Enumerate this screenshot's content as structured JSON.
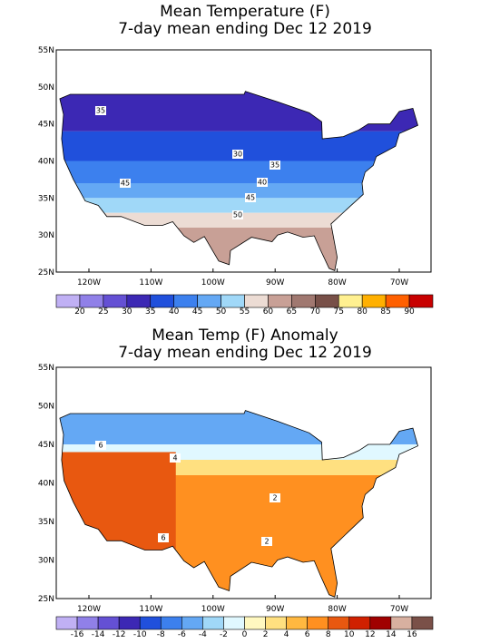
{
  "panels": [
    {
      "title_lines": [
        "Mean Temperature (F)",
        "7-day mean ending Dec 12 2019"
      ],
      "lat_labels": [
        "55N",
        "50N",
        "45N",
        "40N",
        "35N",
        "30N",
        "25N"
      ],
      "lon_labels": [
        "120W",
        "110W",
        "100W",
        "90W",
        "80W",
        "70W"
      ],
      "contour_labels": [
        "35",
        "30",
        "35",
        "40",
        "45",
        "45",
        "50"
      ],
      "colorbar": {
        "labels": [
          "20",
          "25",
          "30",
          "35",
          "40",
          "45",
          "50",
          "55",
          "60",
          "65",
          "70",
          "75",
          "80",
          "85",
          "90"
        ],
        "colors": [
          "#c0b0f4",
          "#9080e8",
          "#6450d4",
          "#3c28b4",
          "#2050dc",
          "#3c80ee",
          "#64a8f4",
          "#a0d8f8",
          "#ecdcd4",
          "#c8a096",
          "#a07870",
          "#785048",
          "#fff090",
          "#ffb000",
          "#ff6000",
          "#c80000"
        ]
      }
    },
    {
      "title_lines": [
        "Mean Temp (F) Anomaly",
        "7-day mean ending Dec 12 2019"
      ],
      "lat_labels": [
        "55N",
        "50N",
        "45N",
        "40N",
        "35N",
        "30N",
        "25N"
      ],
      "lon_labels": [
        "120W",
        "110W",
        "100W",
        "90W",
        "80W",
        "70W"
      ],
      "contour_labels": [
        "6",
        "4",
        "2",
        "2",
        "6"
      ],
      "colorbar": {
        "labels": [
          "-16",
          "-14",
          "-12",
          "-10",
          "-8",
          "-6",
          "-4",
          "-2",
          "0",
          "2",
          "4",
          "6",
          "8",
          "10",
          "12",
          "14",
          "16"
        ],
        "colors": [
          "#c0b0f4",
          "#9080e8",
          "#6450d4",
          "#3c28b4",
          "#2050dc",
          "#3c80ee",
          "#64a8f4",
          "#a0d8f8",
          "#e0f8ff",
          "#fff8c0",
          "#ffe080",
          "#ffb840",
          "#ff9020",
          "#e85810",
          "#d02000",
          "#a00000",
          "#d8b0a0",
          "#7a5048"
        ]
      }
    }
  ]
}
